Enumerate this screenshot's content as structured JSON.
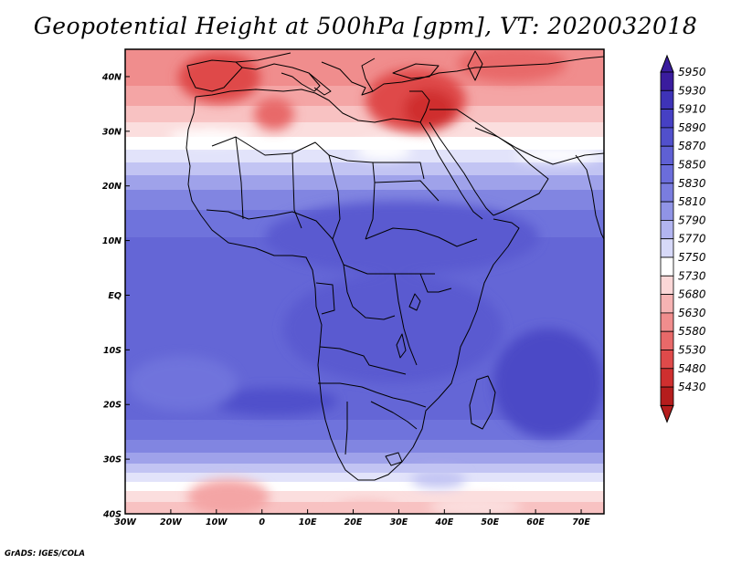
{
  "title": "Geopotential Height at 500hPa [gpm], VT: 2020032018",
  "credit": "GrADS: IGES/COLA",
  "chart_data": {
    "type": "heatmap",
    "title": "Geopotential Height at 500hPa [gpm], VT: 2020032018",
    "variable": "Geopotential Height",
    "level": "500hPa",
    "units": "gpm",
    "valid_time": "2020032018",
    "xlim": [
      -30,
      75
    ],
    "ylim": [
      -40,
      45
    ],
    "x_ticks": [
      {
        "value": -30,
        "label": "30W"
      },
      {
        "value": -20,
        "label": "20W"
      },
      {
        "value": -10,
        "label": "10W"
      },
      {
        "value": 0,
        "label": "0"
      },
      {
        "value": 10,
        "label": "10E"
      },
      {
        "value": 20,
        "label": "20E"
      },
      {
        "value": 30,
        "label": "30E"
      },
      {
        "value": 40,
        "label": "40E"
      },
      {
        "value": 50,
        "label": "50E"
      },
      {
        "value": 60,
        "label": "60E"
      },
      {
        "value": 70,
        "label": "70E"
      }
    ],
    "y_ticks": [
      {
        "value": 40,
        "label": "40N"
      },
      {
        "value": 30,
        "label": "30N"
      },
      {
        "value": 20,
        "label": "20N"
      },
      {
        "value": 10,
        "label": "10N"
      },
      {
        "value": 0,
        "label": "EQ"
      },
      {
        "value": -10,
        "label": "10S"
      },
      {
        "value": -20,
        "label": "20S"
      },
      {
        "value": -30,
        "label": "30S"
      },
      {
        "value": -40,
        "label": "40S"
      }
    ],
    "colorbar": {
      "levels": [
        5950,
        5930,
        5910,
        5890,
        5870,
        5850,
        5830,
        5810,
        5790,
        5770,
        5750,
        5730,
        5680,
        5630,
        5580,
        5530,
        5480,
        5430
      ],
      "colors": [
        "#3a1c9e",
        "#3e33b7",
        "#4640c4",
        "#5150cc",
        "#5f60d4",
        "#6b6ddb",
        "#7a7ddf",
        "#9094e6",
        "#b2b5f0",
        "#d7d9f8",
        "#ffffff",
        "#fbd7d7",
        "#f6b3b3",
        "#f08d8d",
        "#e86969",
        "#df4a4a",
        "#cf2f2f",
        "#b51d1d"
      ],
      "orientation": "vertical",
      "placement": "right"
    },
    "features": [
      {
        "name": "high-height belt",
        "description": "5890–5910 gpm over central Africa, Congo basin and Indian Ocean"
      },
      {
        "name": "low-height center",
        "description": "about 5630 gpm over eastern Mediterranean / Levant"
      },
      {
        "name": "low-height center",
        "description": "about 5630–5680 gpm over the western Mediterranean / Iberia"
      },
      {
        "name": "southern trough band",
        "description": "5680–5790 gpm near 35S–40S"
      }
    ]
  }
}
